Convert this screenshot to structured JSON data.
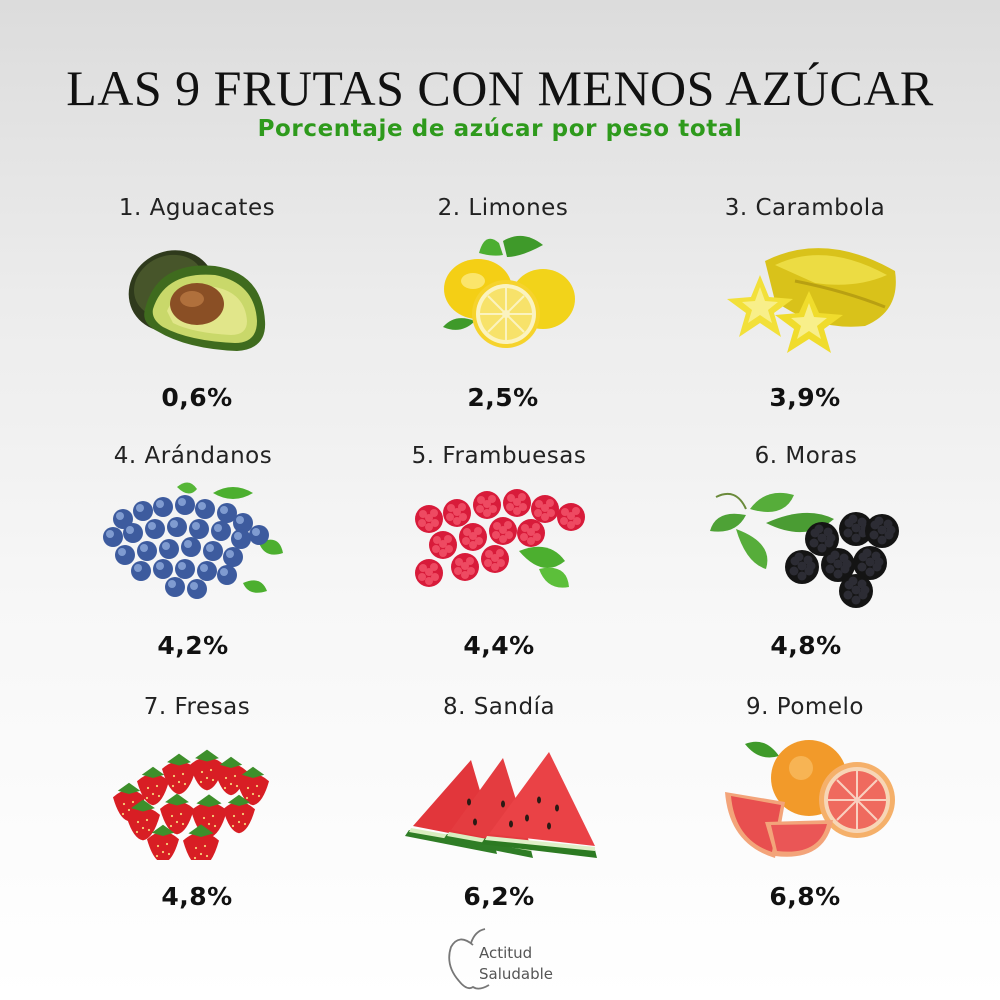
{
  "header": {
    "title": "LAS 9 FRUTAS CON MENOS AZÚCAR",
    "subtitle": "Porcentaje de azúcar por peso total"
  },
  "fruits": [
    {
      "label": "1. Aguacates",
      "value": "0,6%",
      "icon": "avocado-icon"
    },
    {
      "label": "2. Limones",
      "value": "2,5%",
      "icon": "lemon-icon"
    },
    {
      "label": "3. Carambola",
      "value": "3,9%",
      "icon": "starfruit-icon"
    },
    {
      "label": "4. Arándanos",
      "value": "4,2%",
      "icon": "blueberries-icon"
    },
    {
      "label": "5. Frambuesas",
      "value": "4,4%",
      "icon": "raspberries-icon"
    },
    {
      "label": "6. Moras",
      "value": "4,8%",
      "icon": "blackberries-icon"
    },
    {
      "label": "7. Fresas",
      "value": "4,8%",
      "icon": "strawberries-icon"
    },
    {
      "label": "8. Sandía",
      "value": "6,2%",
      "icon": "watermelon-icon"
    },
    {
      "label": "9. Pomelo",
      "value": "6,8%",
      "icon": "grapefruit-icon"
    }
  ],
  "logo": {
    "line1": "Actitud",
    "line2": "Saludable"
  },
  "colors": {
    "subtitle": "#2e9a1c",
    "title": "#111111"
  }
}
